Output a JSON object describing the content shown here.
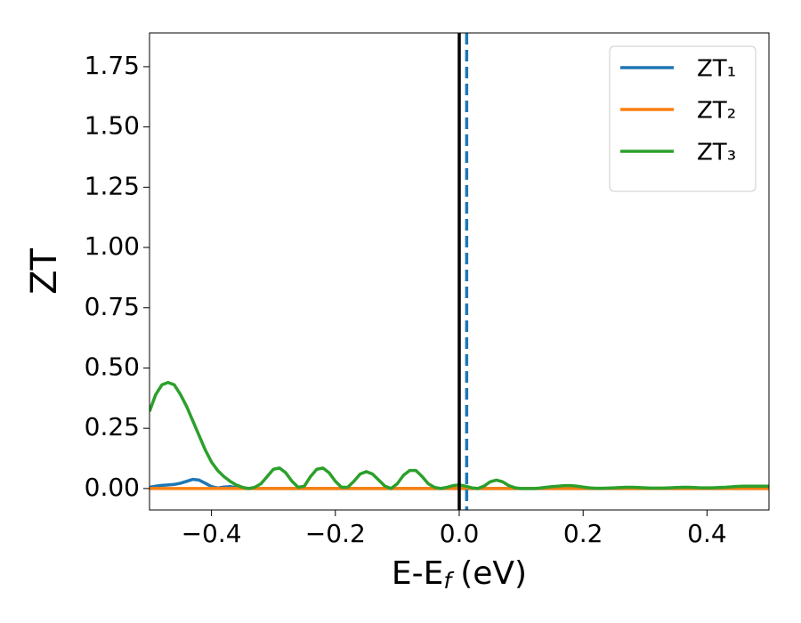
{
  "chart_data": {
    "type": "line",
    "xlabel": {
      "text": "E-E",
      "subscript": "f",
      "unit": "(eV)"
    },
    "ylabel": "ZT",
    "xlim": [
      -0.5,
      0.5
    ],
    "ylim": [
      -0.089,
      1.89
    ],
    "xticks": [
      {
        "value": -0.4,
        "label": "−0.4"
      },
      {
        "value": -0.2,
        "label": "−0.2"
      },
      {
        "value": 0,
        "label": "0.0"
      },
      0.2,
      0.4
    ],
    "yticks": [
      {
        "value": 0,
        "label": "0.00"
      },
      0.25,
      {
        "value": 0.5,
        "label": "0.50"
      },
      0.75,
      {
        "value": 1,
        "label": "1.00"
      },
      1.25,
      {
        "value": 1.5,
        "label": "1.50"
      },
      1.75
    ],
    "legend": "upper right",
    "grid": false,
    "x": [
      -0.5,
      -0.49,
      -0.48,
      -0.47,
      -0.46,
      -0.45,
      -0.44,
      -0.43,
      -0.42,
      -0.41,
      -0.4,
      -0.39,
      -0.38,
      -0.37,
      -0.36,
      -0.35,
      -0.34,
      -0.33,
      -0.32,
      -0.31,
      -0.3,
      -0.29,
      -0.28,
      -0.27,
      -0.26,
      -0.25,
      -0.24,
      -0.23,
      -0.22,
      -0.21,
      -0.2,
      -0.19,
      -0.18,
      -0.17,
      -0.16,
      -0.15,
      -0.14,
      -0.13,
      -0.12,
      -0.11,
      -0.1,
      -0.09,
      -0.08,
      -0.07,
      -0.06,
      -0.05,
      -0.04,
      -0.03,
      -0.02,
      -0.01,
      0,
      0.01,
      0.02,
      0.03,
      0.04,
      0.05,
      0.06,
      0.07,
      0.08,
      0.09,
      0.1,
      0.11,
      0.12,
      0.13,
      0.14,
      0.15,
      0.16,
      0.17,
      0.18,
      0.19,
      0.2,
      0.21,
      0.22,
      0.23,
      0.24,
      0.25,
      0.26,
      0.27,
      0.28,
      0.29,
      0.3,
      0.31,
      0.32,
      0.33,
      0.34,
      0.35,
      0.36,
      0.37,
      0.38,
      0.39,
      0.4,
      0.41,
      0.42,
      0.43,
      0.44,
      0.45,
      0.46,
      0.47,
      0.48,
      0.49,
      0.5
    ],
    "series": [
      {
        "name": "ZT₁",
        "color": "#1f77b4",
        "values": [
          0.005,
          0.01,
          0.013,
          0.015,
          0.017,
          0.022,
          0.03,
          0.038,
          0.035,
          0.022,
          0.008,
          0.002,
          0.006,
          0.008,
          0.004,
          0.001,
          0,
          0,
          0,
          0,
          0,
          0,
          0,
          0,
          0,
          0,
          0,
          0,
          0,
          0,
          0,
          0,
          0,
          0,
          0,
          0,
          0,
          0,
          0,
          0,
          0,
          0,
          0,
          0,
          0,
          0,
          0,
          0,
          0,
          0,
          0,
          0,
          0,
          0,
          0,
          0,
          0,
          0,
          0,
          0,
          0,
          0,
          0,
          0,
          0,
          0,
          0,
          0,
          0,
          0,
          0,
          0,
          0,
          0,
          0,
          0,
          0,
          0,
          0,
          0,
          0,
          0,
          0,
          0,
          0,
          0,
          0,
          0,
          0,
          0,
          0,
          0,
          0,
          0,
          0,
          0,
          0,
          0,
          0,
          0,
          0
        ]
      },
      {
        "name": "ZT₂",
        "color": "#ff7f0e",
        "values": [
          0,
          0,
          0,
          0,
          0,
          0,
          0,
          0,
          0,
          0,
          0,
          0,
          0,
          0,
          0,
          0,
          0,
          0,
          0,
          0,
          0,
          0,
          0,
          0,
          0,
          0,
          0,
          0,
          0,
          0,
          0,
          0,
          0,
          0,
          0,
          0,
          0,
          0,
          0,
          0,
          0,
          0,
          0,
          0,
          0,
          0,
          0,
          0,
          0,
          0,
          0,
          0,
          0,
          0,
          0,
          0,
          0,
          0,
          0,
          0,
          0,
          0,
          0,
          0,
          0,
          0,
          0,
          0,
          0,
          0,
          0,
          0,
          0,
          0,
          0,
          0,
          0,
          0,
          0,
          0,
          0,
          0,
          0,
          0,
          0,
          0,
          0,
          0,
          0,
          0,
          0,
          0,
          0,
          0,
          0,
          0,
          0,
          0,
          0,
          0,
          0
        ]
      },
      {
        "name": "ZT₃",
        "color": "#2ca02c",
        "values": [
          0.32,
          0.39,
          0.43,
          0.44,
          0.43,
          0.39,
          0.34,
          0.28,
          0.22,
          0.16,
          0.11,
          0.075,
          0.05,
          0.03,
          0.015,
          0.005,
          0,
          0.005,
          0.02,
          0.05,
          0.08,
          0.085,
          0.065,
          0.03,
          0.005,
          0.01,
          0.05,
          0.08,
          0.085,
          0.065,
          0.03,
          0.005,
          0.005,
          0.03,
          0.06,
          0.07,
          0.06,
          0.035,
          0.01,
          0,
          0.02,
          0.055,
          0.075,
          0.075,
          0.05,
          0.02,
          0.005,
          0,
          0.005,
          0.012,
          0.015,
          0.01,
          0.003,
          0,
          0.01,
          0.028,
          0.035,
          0.028,
          0.012,
          0.003,
          0,
          0,
          0,
          0.002,
          0.005,
          0.008,
          0.01,
          0.012,
          0.012,
          0.01,
          0.006,
          0.003,
          0.001,
          0.001,
          0.002,
          0.003,
          0.004,
          0.005,
          0.005,
          0.004,
          0.003,
          0.002,
          0.002,
          0.002,
          0.003,
          0.004,
          0.005,
          0.005,
          0.004,
          0.003,
          0.003,
          0.003,
          0.004,
          0.005,
          0.007,
          0.009,
          0.01,
          0.01,
          0.01,
          0.01,
          0.01
        ]
      }
    ],
    "vlines": [
      {
        "x": 0,
        "color": "#000000",
        "style": "solid"
      },
      {
        "x": 0.012,
        "color": "#1f77b4",
        "style": "dashed"
      }
    ]
  }
}
